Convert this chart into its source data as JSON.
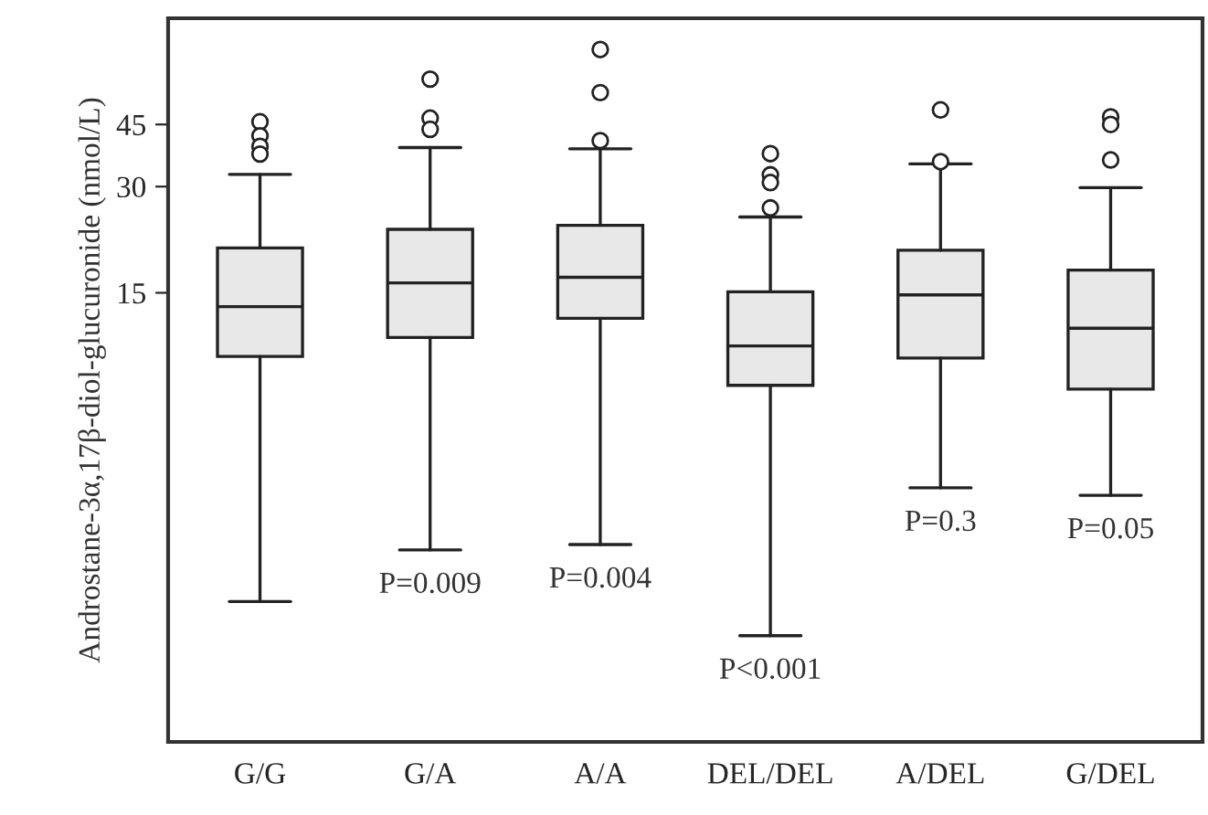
{
  "chart_data": {
    "type": "box",
    "ylabel": "Androstane-3α,17β-diol-glucuronide (nmol/L)",
    "categories": [
      "G/G",
      "G/A",
      "A/A",
      "DEL/DEL",
      "A/DEL",
      "G/DEL"
    ],
    "color": "#e8e8e8",
    "log": true,
    "ylim": [
      0.8,
      90
    ],
    "yticks": [
      15,
      30,
      45
    ],
    "grid": false,
    "boxes": [
      {
        "low": 2.0,
        "q1": 9.9,
        "median": 13.7,
        "q3": 20.1,
        "high": 32.5,
        "outliers": [
          45.8,
          41.8,
          39,
          37.1
        ]
      },
      {
        "low": 2.8,
        "q1": 11.2,
        "median": 16.0,
        "q3": 22.7,
        "high": 38.7,
        "outliers": [
          60.5,
          46.9,
          43.6
        ]
      },
      {
        "low": 2.9,
        "q1": 12.7,
        "median": 16.6,
        "q3": 23.3,
        "high": 38.4,
        "outliers": [
          73.4,
          55.4,
          40.5
        ]
      },
      {
        "low": 1.6,
        "q1": 8.2,
        "median": 10.6,
        "q3": 15.1,
        "high": 24.6,
        "outliers": [
          37.2,
          32.4,
          30.8,
          26.1
        ]
      },
      {
        "low": 4.2,
        "q1": 9.8,
        "median": 14.8,
        "q3": 19.8,
        "high": 34.8,
        "outliers": [
          49.5,
          35.3
        ]
      },
      {
        "low": 4.0,
        "q1": 8.0,
        "median": 11.9,
        "q3": 17.4,
        "high": 29.8,
        "outliers": [
          47.3,
          45,
          35.7
        ]
      }
    ],
    "annotations": [
      {
        "text": "P=0.009",
        "x": "G/A",
        "y": 2.8
      },
      {
        "text": "P=0.004",
        "x": "A/A",
        "y": 2.9
      },
      {
        "text": "P<0.001",
        "x": "DEL/DEL",
        "y": 1.6
      },
      {
        "text": "P=0.3",
        "x": "A/DEL",
        "y": 4.2
      },
      {
        "text": "P=0.05",
        "x": "G/DEL",
        "y": 4.0
      }
    ]
  }
}
